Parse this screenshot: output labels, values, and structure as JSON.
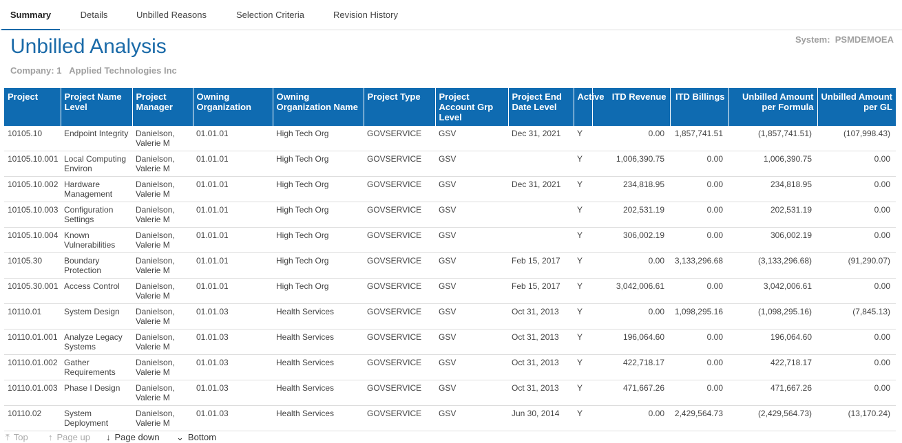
{
  "tabs": [
    "Summary",
    "Details",
    "Unbilled Reasons",
    "Selection Criteria",
    "Revision History"
  ],
  "header": {
    "title": "Unbilled Analysis",
    "company_label": "Company:",
    "company_id": "1",
    "company_name": "Applied Technologies Inc",
    "system_label": "System:",
    "system_value": "PSMDEMOEA"
  },
  "table": {
    "columns": [
      "Project",
      "Project Name Level",
      "Project Manager",
      "Owning Organization",
      "Owning Organization Name",
      "Project Type",
      "Project Account Grp Level",
      "Project End Date Level",
      "Active",
      "ITD Revenue",
      "ITD Billings",
      "Unbilled Amount per Formula",
      "Unbilled Amount per GL"
    ],
    "rows": [
      [
        "10105.10",
        "Endpoint Integrity",
        "Danielson, Valerie M",
        "01.01.01",
        "High Tech Org",
        "GOVSERVICE",
        "GSV",
        "Dec 31, 2021",
        "Y",
        "0.00",
        "1,857,741.51",
        "(1,857,741.51)",
        "(107,998.43)"
      ],
      [
        "10105.10.001",
        "Local Computing Environ",
        "Danielson, Valerie M",
        "01.01.01",
        "High Tech Org",
        "GOVSERVICE",
        "GSV",
        null,
        "Y",
        "1,006,390.75",
        "0.00",
        "1,006,390.75",
        "0.00"
      ],
      [
        "10105.10.002",
        "Hardware Management",
        "Danielson, Valerie M",
        "01.01.01",
        "High Tech Org",
        "GOVSERVICE",
        "GSV",
        "Dec 31, 2021",
        "Y",
        "234,818.95",
        "0.00",
        "234,818.95",
        "0.00"
      ],
      [
        "10105.10.003",
        "Configuration Settings",
        "Danielson, Valerie M",
        "01.01.01",
        "High Tech Org",
        "GOVSERVICE",
        "GSV",
        null,
        "Y",
        "202,531.19",
        "0.00",
        "202,531.19",
        "0.00"
      ],
      [
        "10105.10.004",
        "Known Vulnerabilities",
        "Danielson, Valerie M",
        "01.01.01",
        "High Tech Org",
        "GOVSERVICE",
        "GSV",
        null,
        "Y",
        "306,002.19",
        "0.00",
        "306,002.19",
        "0.00"
      ],
      [
        "10105.30",
        "Boundary Protection",
        "Danielson, Valerie M",
        "01.01.01",
        "High Tech Org",
        "GOVSERVICE",
        "GSV",
        "Feb 15, 2017",
        "Y",
        "0.00",
        "3,133,296.68",
        "(3,133,296.68)",
        "(91,290.07)"
      ],
      [
        "10105.30.001",
        "Access Control",
        "Danielson, Valerie M",
        "01.01.01",
        "High Tech Org",
        "GOVSERVICE",
        "GSV",
        "Feb 15, 2017",
        "Y",
        "3,042,006.61",
        "0.00",
        "3,042,006.61",
        "0.00"
      ],
      [
        "10110.01",
        "System Design",
        "Danielson, Valerie M",
        "01.01.03",
        "Health Services",
        "GOVSERVICE",
        "GSV",
        "Oct 31, 2013",
        "Y",
        "0.00",
        "1,098,295.16",
        "(1,098,295.16)",
        "(7,845.13)"
      ],
      [
        "10110.01.001",
        "Analyze Legacy Systems",
        "Danielson, Valerie M",
        "01.01.03",
        "Health Services",
        "GOVSERVICE",
        "GSV",
        "Oct 31, 2013",
        "Y",
        "196,064.60",
        "0.00",
        "196,064.60",
        "0.00"
      ],
      [
        "10110.01.002",
        "Gather Requirements",
        "Danielson, Valerie M",
        "01.01.03",
        "Health Services",
        "GOVSERVICE",
        "GSV",
        "Oct 31, 2013",
        "Y",
        "422,718.17",
        "0.00",
        "422,718.17",
        "0.00"
      ],
      [
        "10110.01.003",
        "Phase I Design",
        "Danielson, Valerie M",
        "01.01.03",
        "Health Services",
        "GOVSERVICE",
        "GSV",
        "Oct 31, 2013",
        "Y",
        "471,667.26",
        "0.00",
        "471,667.26",
        "0.00"
      ],
      [
        "10110.02",
        "System Deployment",
        "Danielson, Valerie M",
        "01.01.03",
        "Health Services",
        "GOVSERVICE",
        "GSV",
        "Jun 30, 2014",
        "Y",
        "0.00",
        "2,429,564.73",
        "(2,429,564.73)",
        "(13,170.24)"
      ]
    ]
  },
  "footer": [
    "Top",
    "Page up",
    "Page down",
    "Bottom"
  ]
}
